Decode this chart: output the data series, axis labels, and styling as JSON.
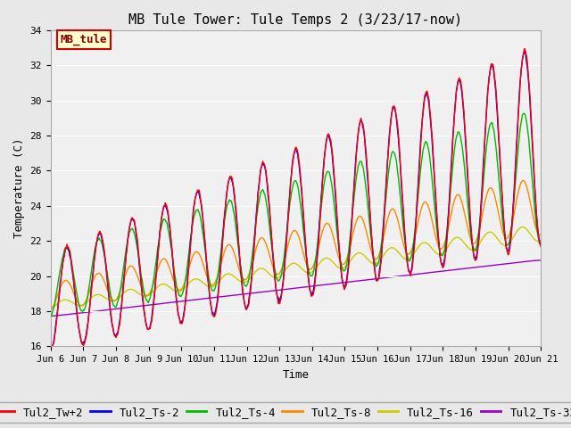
{
  "title": "MB Tule Tower: Tule Temps 2 (3/23/17-now)",
  "xlabel": "Time",
  "ylabel": "Temperature (C)",
  "ylim": [
    16,
    34
  ],
  "xlim": [
    0,
    15
  ],
  "bg_color": "#e8e8e8",
  "plot_bg": "#f0f0f0",
  "series": {
    "Tul2_Tw+2": {
      "color": "#ff0000",
      "lw": 1.2
    },
    "Tul2_Ts-2": {
      "color": "#0000ff",
      "lw": 1.2
    },
    "Tul2_Ts-4": {
      "color": "#00bb00",
      "lw": 1.2
    },
    "Tul2_Ts-8": {
      "color": "#ff8800",
      "lw": 1.2
    },
    "Tul2_Ts-16": {
      "color": "#cccc00",
      "lw": 1.2
    },
    "Tul2_Ts-32": {
      "color": "#9900cc",
      "lw": 1.2
    }
  },
  "xtick_labels": [
    "Jun 6",
    "Jun 7",
    "Jun 8",
    "Jun 9",
    "Jun 10",
    "Jun 11",
    "Jun 12",
    "Jun 13",
    "Jun 14",
    "Jun 15",
    "Jun 16",
    "Jun 17",
    "Jun 18",
    "Jun 19",
    "Jun 20",
    "Jun 21"
  ],
  "ytick_vals": [
    16,
    18,
    20,
    22,
    24,
    26,
    28,
    30,
    32,
    34
  ],
  "legend_box": {
    "text": "MB_tule",
    "fc": "#ffffcc",
    "ec": "#cc0000",
    "fontsize": 9
  },
  "legend_fontsize": 9,
  "title_fontsize": 11
}
